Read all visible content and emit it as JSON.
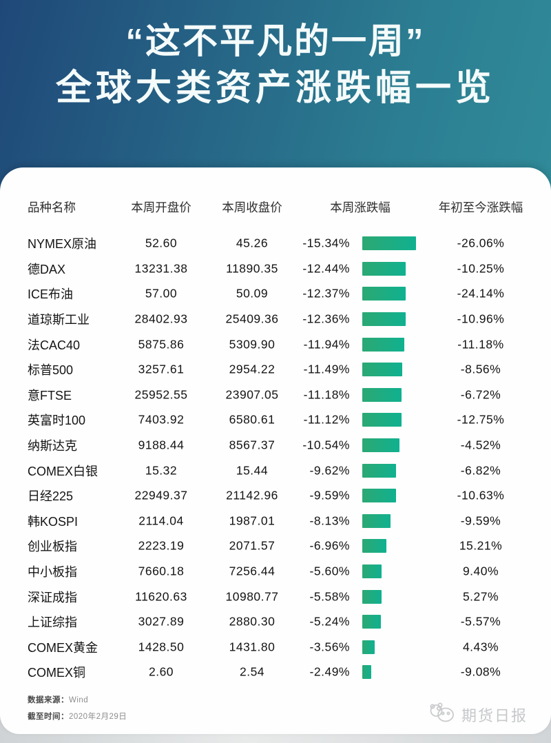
{
  "header": {
    "title_line1": "“这不平凡的一周”",
    "title_line2": "全球大类资产涨跌幅一览"
  },
  "table": {
    "columns": [
      "品种名称",
      "本周开盘价",
      "本周收盘价",
      "本周涨跌幅",
      "年初至今涨跌幅"
    ],
    "rows": [
      {
        "name": "NYMEX原油",
        "open": "52.60",
        "close": "45.26",
        "week": "-15.34%",
        "ytd": "-26.06%"
      },
      {
        "name": "德DAX",
        "open": "13231.38",
        "close": "11890.35",
        "week": "-12.44%",
        "ytd": "-10.25%"
      },
      {
        "name": "ICE布油",
        "open": "57.00",
        "close": "50.09",
        "week": "-12.37%",
        "ytd": "-24.14%"
      },
      {
        "name": "道琼斯工业",
        "open": "28402.93",
        "close": "25409.36",
        "week": "-12.36%",
        "ytd": "-10.96%"
      },
      {
        "name": "法CAC40",
        "open": "5875.86",
        "close": "5309.90",
        "week": "-11.94%",
        "ytd": "-11.18%"
      },
      {
        "name": "标普500",
        "open": "3257.61",
        "close": "2954.22",
        "week": "-11.49%",
        "ytd": "-8.56%"
      },
      {
        "name": "意FTSE",
        "open": "25952.55",
        "close": "23907.05",
        "week": "-11.18%",
        "ytd": "-6.72%"
      },
      {
        "name": "英富时100",
        "open": "7403.92",
        "close": "6580.61",
        "week": "-11.12%",
        "ytd": "-12.75%"
      },
      {
        "name": "纳斯达克",
        "open": "9188.44",
        "close": "8567.37",
        "week": "-10.54%",
        "ytd": "-4.52%"
      },
      {
        "name": "COMEX白银",
        "open": "15.32",
        "close": "15.44",
        "week": "-9.62%",
        "ytd": "-6.82%"
      },
      {
        "name": "日经225",
        "open": "22949.37",
        "close": "21142.96",
        "week": "-9.59%",
        "ytd": "-10.63%"
      },
      {
        "name": "韩KOSPI",
        "open": "2114.04",
        "close": "1987.01",
        "week": "-8.13%",
        "ytd": "-9.59%"
      },
      {
        "name": "创业板指",
        "open": "2223.19",
        "close": "2071.57",
        "week": "-6.96%",
        "ytd": "15.21%"
      },
      {
        "name": "中小板指",
        "open": "7660.18",
        "close": "7256.44",
        "week": "-5.60%",
        "ytd": "9.40%"
      },
      {
        "name": "深证成指",
        "open": "11620.63",
        "close": "10980.77",
        "week": "-5.58%",
        "ytd": "5.27%"
      },
      {
        "name": "上证综指",
        "open": "3027.89",
        "close": "2880.30",
        "week": "-5.24%",
        "ytd": "-5.57%"
      },
      {
        "name": "COMEX黄金",
        "open": "1428.50",
        "close": "1431.80",
        "week": "-3.56%",
        "ytd": "4.43%"
      },
      {
        "name": "COMEX铜",
        "open": "2.60",
        "close": "2.54",
        "week": "-2.49%",
        "ytd": "-9.08%"
      }
    ]
  },
  "footer": {
    "source_label": "数据来源：",
    "source_value": "Wind",
    "date_label": "截至时间：",
    "date_value": "2020年2月29日",
    "brand": "期货日报"
  },
  "colors": {
    "bg_left": "#1f4878",
    "bg_mid": "#2c7e92",
    "bg_right": "#33959e",
    "bar_start": "#2ca873",
    "bar_end": "#10b190",
    "title_text": "#f4fbfa"
  },
  "chart_data": {
    "type": "bar",
    "title": "全球大类资产涨跌幅一览（这不平凡的一周）",
    "categories": [
      "NYMEX原油",
      "德DAX",
      "ICE布油",
      "道琼斯工业",
      "法CAC40",
      "标普500",
      "意FTSE",
      "英富时100",
      "纳斯达克",
      "COMEX白银",
      "日经225",
      "韩KOSPI",
      "创业板指",
      "中小板指",
      "深证成指",
      "上证综指",
      "COMEX黄金",
      "COMEX铜"
    ],
    "series": [
      {
        "name": "本周开盘价",
        "values": [
          52.6,
          13231.38,
          57.0,
          28402.93,
          5875.86,
          3257.61,
          25952.55,
          7403.92,
          9188.44,
          15.32,
          22949.37,
          2114.04,
          2223.19,
          7660.18,
          11620.63,
          3027.89,
          1428.5,
          2.6
        ]
      },
      {
        "name": "本周收盘价",
        "values": [
          45.26,
          11890.35,
          50.09,
          25409.36,
          5309.9,
          2954.22,
          23907.05,
          6580.61,
          8567.37,
          15.44,
          21142.96,
          1987.01,
          2071.57,
          7256.44,
          10980.77,
          2880.3,
          1431.8,
          2.54
        ]
      },
      {
        "name": "本周涨跌幅(%)",
        "values": [
          -15.34,
          -12.44,
          -12.37,
          -12.36,
          -11.94,
          -11.49,
          -11.18,
          -11.12,
          -10.54,
          -9.62,
          -9.59,
          -8.13,
          -6.96,
          -5.6,
          -5.58,
          -5.24,
          -3.56,
          -2.49
        ]
      },
      {
        "name": "年初至今涨跌幅(%)",
        "values": [
          -26.06,
          -10.25,
          -24.14,
          -10.96,
          -11.18,
          -8.56,
          -6.72,
          -12.75,
          -4.52,
          -6.82,
          -10.63,
          -9.59,
          15.21,
          9.4,
          5.27,
          -5.57,
          4.43,
          -9.08
        ]
      }
    ],
    "bar_series_plotted": "本周涨跌幅(%)",
    "orientation": "horizontal",
    "xlabel": "",
    "ylabel": "",
    "grid": false,
    "legend_position": "none",
    "data_source": "Wind",
    "as_of": "2020年2月29日"
  }
}
